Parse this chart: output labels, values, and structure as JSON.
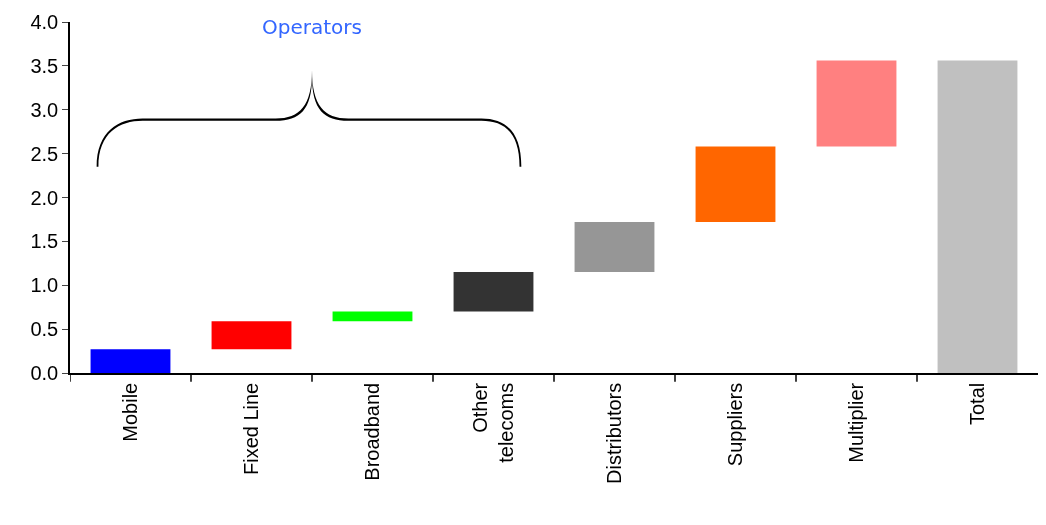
{
  "chart_data": {
    "type": "bar",
    "categories": [
      "Mobile",
      "Fixed Line",
      "Broadband",
      "Other\ntelecoms",
      "Distributors",
      "Suppliers",
      "Multiplier",
      "Total"
    ],
    "values": [
      0.27,
      0.32,
      0.11,
      0.45,
      0.57,
      0.86,
      0.98,
      3.56
    ],
    "base": [
      0,
      0.27,
      0.59,
      0.7,
      1.15,
      1.72,
      2.58,
      0
    ],
    "colors": [
      "#0000ff",
      "#ff0000",
      "#00ff00",
      "#333333",
      "#969696",
      "#ff6600",
      "#ff8080",
      "#c0c0c0"
    ],
    "ylim": [
      0,
      4.0
    ],
    "yticks": [
      {
        "value": 0,
        "label": "0.0"
      },
      {
        "value": 0.5,
        "label": "0.5"
      },
      {
        "value": 1.0,
        "label": "1.0"
      },
      {
        "value": 1.5,
        "label": "1.5"
      },
      {
        "value": 2.0,
        "label": "2.0"
      },
      {
        "value": 2.5,
        "label": "2.5"
      },
      {
        "value": 3.0,
        "label": "3.0"
      },
      {
        "value": 3.5,
        "label": "3.5"
      },
      {
        "value": 4.0,
        "label": "4.0"
      }
    ],
    "annotations": [
      "Operators"
    ]
  }
}
